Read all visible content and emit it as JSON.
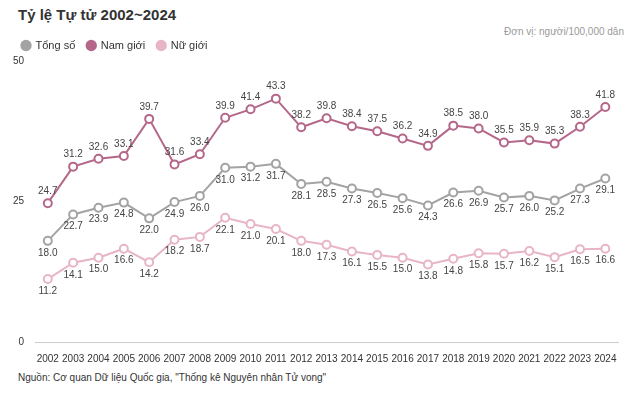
{
  "chart_data": {
    "type": "line",
    "title": "Tỷ lệ Tự tử 2002~2024",
    "subtitle": "Đơn vị: người/100,000 dân",
    "source": "Nguồn: Cơ quan Dữ liệu Quốc gia, \"Thống kê Nguyên nhân Tử vong\"",
    "categories": [
      "2002",
      "2003",
      "2004",
      "2005",
      "2006",
      "2007",
      "2008",
      "2009",
      "2010",
      "2011",
      "2012",
      "2013",
      "2014",
      "2015",
      "2016",
      "2017",
      "2018",
      "2019",
      "2020",
      "2021",
      "2022",
      "2023",
      "2024"
    ],
    "series": [
      {
        "name": "Tổng số",
        "color": "#a3a3a3",
        "values": [
          18.0,
          22.7,
          23.9,
          24.8,
          22.0,
          24.9,
          26.0,
          31.0,
          31.2,
          31.7,
          28.1,
          28.5,
          27.3,
          26.5,
          25.6,
          24.3,
          26.6,
          26.9,
          25.7,
          26.0,
          25.2,
          27.3,
          29.1
        ],
        "value_labels": [
          "18.0",
          "22.7",
          "23.9",
          "24.8",
          "22.0",
          "24.9",
          "26.0",
          "31.0",
          "31.2",
          "31.7",
          "28.1",
          "28.5",
          "27.3",
          "26.5",
          "25.6",
          "24.3",
          "26.6",
          "26.9",
          "25.7",
          "26.0",
          "25.2",
          "27.3",
          "29.1"
        ]
      },
      {
        "name": "Nam giới",
        "color": "#b5678a",
        "values": [
          24.7,
          31.2,
          32.6,
          33.1,
          39.7,
          31.6,
          33.4,
          39.9,
          41.4,
          43.3,
          38.2,
          39.8,
          38.4,
          37.5,
          36.2,
          34.9,
          38.5,
          38.0,
          35.5,
          35.9,
          35.3,
          38.3,
          41.8
        ],
        "value_labels": [
          "24.7",
          "31.2",
          "32.6",
          "33.1",
          "39.7",
          "31.6",
          "33.4",
          "39.9",
          "41.4",
          "43.3",
          "38.2",
          "39.8",
          "38.4",
          "37.5",
          "36.2",
          "34.9",
          "38.5",
          "38.0",
          "35.5",
          "35.9",
          "35.3",
          "38.3",
          "41.8"
        ]
      },
      {
        "name": "Nữ giới",
        "color": "#e8b5c7",
        "values": [
          11.2,
          14.1,
          15.0,
          16.6,
          14.2,
          18.2,
          18.7,
          22.1,
          21.0,
          20.1,
          18.0,
          17.3,
          16.1,
          15.5,
          15.0,
          13.8,
          14.8,
          15.8,
          15.7,
          16.2,
          15.1,
          16.5,
          16.6
        ],
        "value_labels": [
          "11.2",
          "14.1",
          "15.0",
          "16.6",
          "14.2",
          "18.2",
          "18.7",
          "22.1",
          "21.0",
          "20.1",
          "18.0",
          "17.3",
          "16.1",
          "15.5",
          "15.0",
          "13.8",
          "14.8",
          "15.8",
          "15.7",
          "16.2",
          "15.1",
          "16.5",
          "16.6"
        ]
      }
    ],
    "ylim": [
      0,
      50
    ],
    "yticks": [
      0,
      25,
      50
    ],
    "grid": false,
    "legend": "top-left",
    "data_labels": true,
    "marker": "circle"
  }
}
